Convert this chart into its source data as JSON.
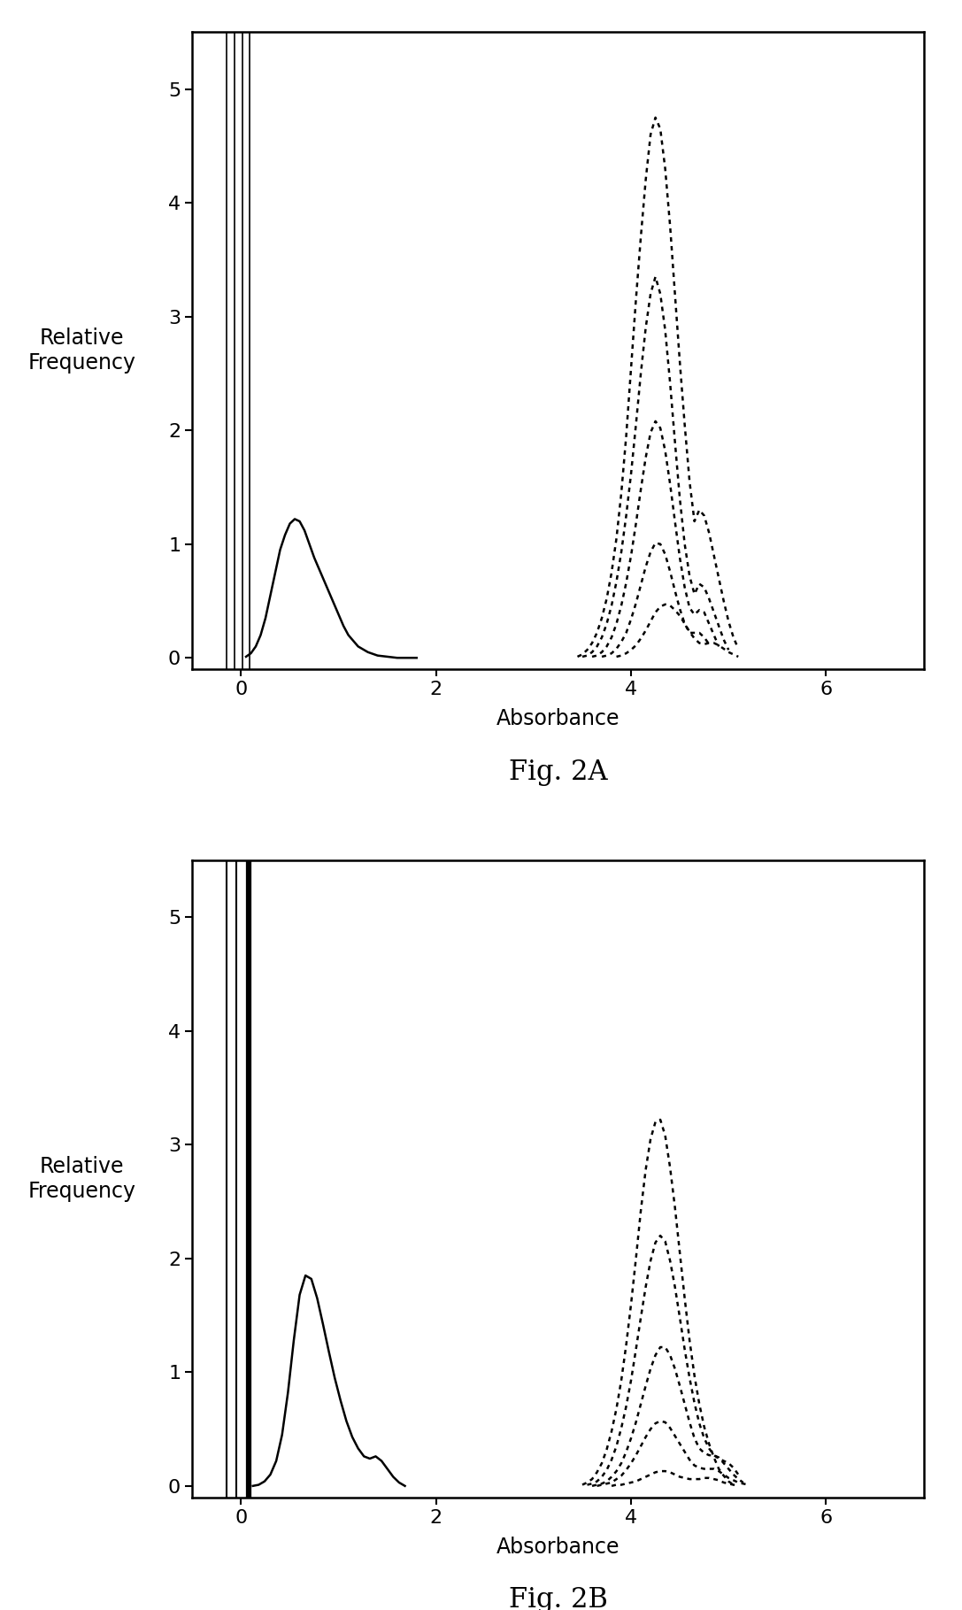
{
  "fig2A": {
    "title": "Fig. 2A",
    "ylabel": "Relative\nFrequency",
    "xlabel": "Absorbance",
    "xlim": [
      -0.5,
      7
    ],
    "ylim": [
      -0.1,
      5.5
    ],
    "yticks": [
      0,
      1,
      2,
      3,
      4,
      5
    ],
    "xticks": [
      0,
      2,
      4,
      6
    ],
    "vertical_lines": [
      -0.15,
      -0.07,
      0.01,
      0.09
    ],
    "vertical_lw": [
      1.2,
      1.2,
      1.2,
      1.2
    ],
    "solid_curve_x": [
      0.05,
      0.1,
      0.15,
      0.2,
      0.25,
      0.3,
      0.35,
      0.4,
      0.45,
      0.5,
      0.55,
      0.6,
      0.65,
      0.7,
      0.75,
      0.8,
      0.85,
      0.9,
      0.95,
      1.0,
      1.05,
      1.1,
      1.2,
      1.3,
      1.4,
      1.5,
      1.6,
      1.7,
      1.8
    ],
    "solid_curve_y": [
      0.01,
      0.04,
      0.1,
      0.2,
      0.35,
      0.55,
      0.75,
      0.95,
      1.08,
      1.18,
      1.22,
      1.2,
      1.12,
      1.0,
      0.88,
      0.78,
      0.68,
      0.58,
      0.48,
      0.38,
      0.28,
      0.2,
      0.1,
      0.05,
      0.02,
      0.01,
      0.0,
      0.0,
      0.0
    ],
    "dashed_curves": [
      {
        "x": [
          3.45,
          3.5,
          3.55,
          3.6,
          3.65,
          3.7,
          3.75,
          3.8,
          3.85,
          3.9,
          3.95,
          4.0,
          4.05,
          4.1,
          4.15,
          4.2,
          4.25,
          4.3,
          4.35,
          4.4,
          4.45,
          4.5,
          4.55,
          4.6,
          4.65,
          4.7,
          4.75,
          4.8,
          4.85,
          4.9,
          4.95,
          5.0,
          5.05,
          5.1
        ],
        "y": [
          0.01,
          0.03,
          0.07,
          0.13,
          0.22,
          0.35,
          0.52,
          0.75,
          1.05,
          1.45,
          1.95,
          2.55,
          3.15,
          3.7,
          4.2,
          4.6,
          4.75,
          4.65,
          4.3,
          3.8,
          3.2,
          2.6,
          2.05,
          1.55,
          1.2,
          1.3,
          1.25,
          1.1,
          0.9,
          0.7,
          0.5,
          0.32,
          0.18,
          0.08
        ]
      },
      {
        "x": [
          3.5,
          3.55,
          3.6,
          3.65,
          3.7,
          3.75,
          3.8,
          3.85,
          3.9,
          3.95,
          4.0,
          4.05,
          4.1,
          4.15,
          4.2,
          4.25,
          4.3,
          4.35,
          4.4,
          4.45,
          4.5,
          4.55,
          4.6,
          4.65,
          4.7,
          4.75,
          4.8,
          4.85,
          4.9,
          4.95,
          5.0
        ],
        "y": [
          0.01,
          0.02,
          0.05,
          0.1,
          0.18,
          0.3,
          0.46,
          0.67,
          0.93,
          1.25,
          1.62,
          2.05,
          2.5,
          2.9,
          3.2,
          3.35,
          3.2,
          2.88,
          2.42,
          1.9,
          1.4,
          1.0,
          0.72,
          0.56,
          0.65,
          0.62,
          0.52,
          0.4,
          0.28,
          0.16,
          0.07
        ]
      },
      {
        "x": [
          3.6,
          3.65,
          3.7,
          3.75,
          3.8,
          3.85,
          3.9,
          3.95,
          4.0,
          4.05,
          4.1,
          4.15,
          4.2,
          4.25,
          4.3,
          4.35,
          4.4,
          4.45,
          4.5,
          4.55,
          4.6,
          4.65,
          4.7,
          4.75,
          4.8,
          4.85,
          4.9
        ],
        "y": [
          0.01,
          0.02,
          0.05,
          0.1,
          0.18,
          0.3,
          0.46,
          0.66,
          0.9,
          1.18,
          1.48,
          1.76,
          1.98,
          2.08,
          2.02,
          1.82,
          1.53,
          1.2,
          0.88,
          0.62,
          0.44,
          0.38,
          0.42,
          0.4,
          0.3,
          0.2,
          0.1
        ]
      },
      {
        "x": [
          3.7,
          3.75,
          3.8,
          3.85,
          3.9,
          3.95,
          4.0,
          4.05,
          4.1,
          4.15,
          4.2,
          4.25,
          4.3,
          4.35,
          4.4,
          4.45,
          4.5,
          4.55,
          4.6,
          4.65,
          4.7,
          4.75,
          4.8
        ],
        "y": [
          0.01,
          0.02,
          0.04,
          0.08,
          0.14,
          0.22,
          0.34,
          0.48,
          0.64,
          0.8,
          0.93,
          1.01,
          1.0,
          0.91,
          0.76,
          0.59,
          0.43,
          0.3,
          0.22,
          0.22,
          0.22,
          0.18,
          0.12
        ]
      },
      {
        "x": [
          3.85,
          3.9,
          3.95,
          4.0,
          4.05,
          4.1,
          4.15,
          4.2,
          4.25,
          4.3,
          4.35,
          4.4,
          4.45,
          4.5,
          4.55,
          4.6,
          4.65,
          4.7,
          4.75,
          4.8,
          4.85,
          4.9,
          4.95,
          5.0,
          5.05,
          5.1
        ],
        "y": [
          0.01,
          0.02,
          0.04,
          0.07,
          0.11,
          0.17,
          0.24,
          0.32,
          0.4,
          0.45,
          0.47,
          0.46,
          0.42,
          0.37,
          0.3,
          0.23,
          0.17,
          0.13,
          0.12,
          0.13,
          0.13,
          0.11,
          0.08,
          0.05,
          0.03,
          0.01
        ]
      }
    ]
  },
  "fig2B": {
    "title": "Fig. 2B",
    "ylabel": "Relative\nFrequency",
    "xlabel": "Absorbance",
    "xlim": [
      -0.5,
      7
    ],
    "ylim": [
      -0.1,
      5.5
    ],
    "yticks": [
      0,
      1,
      2,
      3,
      4,
      5
    ],
    "xticks": [
      0,
      2,
      4,
      6
    ],
    "vertical_lines": [
      -0.15,
      -0.05,
      0.08
    ],
    "vertical_lw": [
      1.5,
      1.5,
      4.5
    ],
    "solid_curve_x": [
      0.12,
      0.18,
      0.24,
      0.3,
      0.36,
      0.42,
      0.48,
      0.54,
      0.6,
      0.66,
      0.72,
      0.78,
      0.84,
      0.9,
      0.96,
      1.02,
      1.08,
      1.14,
      1.2,
      1.26,
      1.32,
      1.38,
      1.44,
      1.5,
      1.56,
      1.62,
      1.68
    ],
    "solid_curve_y": [
      0.0,
      0.01,
      0.04,
      0.1,
      0.22,
      0.45,
      0.82,
      1.28,
      1.68,
      1.85,
      1.82,
      1.65,
      1.42,
      1.18,
      0.95,
      0.75,
      0.57,
      0.43,
      0.33,
      0.26,
      0.24,
      0.26,
      0.22,
      0.15,
      0.08,
      0.03,
      0.0
    ],
    "dashed_curves": [
      {
        "x": [
          3.5,
          3.55,
          3.6,
          3.65,
          3.7,
          3.75,
          3.8,
          3.85,
          3.9,
          3.95,
          4.0,
          4.05,
          4.1,
          4.15,
          4.2,
          4.25,
          4.3,
          4.35,
          4.4,
          4.45,
          4.5,
          4.55,
          4.6,
          4.65,
          4.7,
          4.75,
          4.8,
          4.85,
          4.9,
          4.95,
          5.0,
          5.05
        ],
        "y": [
          0.01,
          0.03,
          0.06,
          0.12,
          0.2,
          0.32,
          0.48,
          0.68,
          0.93,
          1.24,
          1.6,
          2.0,
          2.42,
          2.78,
          3.05,
          3.2,
          3.22,
          3.08,
          2.8,
          2.45,
          2.05,
          1.65,
          1.28,
          0.97,
          0.72,
          0.52,
          0.37,
          0.25,
          0.15,
          0.09,
          0.04,
          0.01
        ]
      },
      {
        "x": [
          3.55,
          3.6,
          3.65,
          3.7,
          3.75,
          3.8,
          3.85,
          3.9,
          3.95,
          4.0,
          4.05,
          4.1,
          4.15,
          4.2,
          4.25,
          4.3,
          4.35,
          4.4,
          4.45,
          4.5,
          4.55,
          4.6,
          4.65,
          4.7,
          4.75,
          4.8,
          4.85,
          4.9,
          4.95,
          5.0,
          5.05,
          5.1
        ],
        "y": [
          0.01,
          0.02,
          0.04,
          0.08,
          0.14,
          0.23,
          0.35,
          0.51,
          0.7,
          0.93,
          1.2,
          1.48,
          1.75,
          1.98,
          2.14,
          2.2,
          2.15,
          1.98,
          1.75,
          1.48,
          1.2,
          0.95,
          0.73,
          0.55,
          0.42,
          0.33,
          0.27,
          0.24,
          0.22,
          0.2,
          0.16,
          0.1
        ]
      },
      {
        "x": [
          3.6,
          3.65,
          3.7,
          3.75,
          3.8,
          3.85,
          3.9,
          3.95,
          4.0,
          4.05,
          4.1,
          4.15,
          4.2,
          4.25,
          4.3,
          4.35,
          4.4,
          4.45,
          4.5,
          4.55,
          4.6,
          4.65,
          4.7,
          4.75,
          4.8,
          4.85,
          4.9,
          4.95,
          5.0,
          5.05,
          5.1,
          5.15
        ],
        "y": [
          0.0,
          0.01,
          0.02,
          0.04,
          0.08,
          0.13,
          0.2,
          0.3,
          0.42,
          0.56,
          0.72,
          0.88,
          1.03,
          1.15,
          1.22,
          1.22,
          1.15,
          1.03,
          0.88,
          0.72,
          0.56,
          0.42,
          0.33,
          0.29,
          0.27,
          0.27,
          0.25,
          0.2,
          0.15,
          0.1,
          0.06,
          0.03
        ]
      },
      {
        "x": [
          3.65,
          3.7,
          3.75,
          3.8,
          3.85,
          3.9,
          3.95,
          4.0,
          4.05,
          4.1,
          4.15,
          4.2,
          4.25,
          4.3,
          4.35,
          4.4,
          4.45,
          4.5,
          4.55,
          4.6,
          4.65,
          4.7,
          4.75,
          4.8,
          4.85,
          4.9,
          4.95,
          5.0,
          5.05,
          5.1,
          5.15,
          5.2
        ],
        "y": [
          0.0,
          0.01,
          0.02,
          0.03,
          0.06,
          0.09,
          0.14,
          0.2,
          0.27,
          0.35,
          0.43,
          0.5,
          0.55,
          0.57,
          0.56,
          0.51,
          0.44,
          0.37,
          0.3,
          0.23,
          0.18,
          0.16,
          0.15,
          0.15,
          0.15,
          0.13,
          0.1,
          0.07,
          0.05,
          0.03,
          0.02,
          0.01
        ]
      },
      {
        "x": [
          3.8,
          3.85,
          3.9,
          3.95,
          4.0,
          4.05,
          4.1,
          4.15,
          4.2,
          4.25,
          4.3,
          4.35,
          4.4,
          4.45,
          4.5,
          4.55,
          4.6,
          4.65,
          4.7,
          4.75,
          4.8,
          4.85,
          4.9,
          4.95,
          5.0,
          5.05,
          5.1
        ],
        "y": [
          0.0,
          0.01,
          0.01,
          0.02,
          0.03,
          0.04,
          0.06,
          0.08,
          0.1,
          0.12,
          0.13,
          0.13,
          0.12,
          0.1,
          0.08,
          0.07,
          0.06,
          0.06,
          0.06,
          0.07,
          0.07,
          0.06,
          0.05,
          0.03,
          0.02,
          0.01,
          0.0
        ]
      }
    ]
  }
}
